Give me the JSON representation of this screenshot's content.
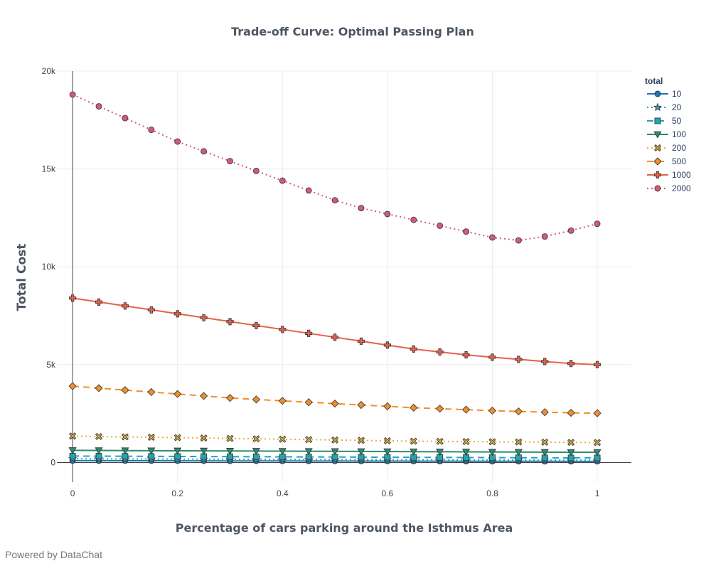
{
  "footer": {
    "text": "Powered by DataChat"
  },
  "chart_data": {
    "type": "line",
    "title": "Trade-off Curve: Optimal Passing Plan",
    "xlabel": "Percentage of cars parking around the Isthmus Area",
    "ylabel": "Total Cost",
    "xlim": [
      -0.03,
      1.065
    ],
    "ylim": [
      -1000,
      20000
    ],
    "x_ticks": [
      0,
      0.2,
      0.4,
      0.6,
      0.8,
      1
    ],
    "x_tick_labels": [
      "0",
      "0.2",
      "0.4",
      "0.6",
      "0.8",
      "1"
    ],
    "y_ticks": [
      0,
      5000,
      10000,
      15000,
      20000
    ],
    "y_tick_labels": [
      "0",
      "5k",
      "10k",
      "15k",
      "20k"
    ],
    "grid": true,
    "legend": {
      "title": "total",
      "position": "top-right"
    },
    "x": [
      0,
      0.05,
      0.1,
      0.15,
      0.2,
      0.25,
      0.3,
      0.35,
      0.4,
      0.45,
      0.5,
      0.55,
      0.6,
      0.65,
      0.7,
      0.75,
      0.8,
      0.85,
      0.9,
      0.95,
      1
    ],
    "series": [
      {
        "name": "10",
        "color": "#1f77b4",
        "dash": "solid",
        "marker": "circle",
        "values": [
          95,
          93,
          91,
          89,
          87,
          85,
          83,
          81,
          79,
          77,
          75,
          73,
          71,
          69,
          67,
          65,
          63,
          62,
          61,
          60,
          60
        ]
      },
      {
        "name": "20",
        "color": "#3a9bc7",
        "dash": "dot",
        "marker": "star",
        "values": [
          190,
          186,
          182,
          178,
          174,
          170,
          166,
          162,
          158,
          154,
          150,
          146,
          142,
          138,
          134,
          130,
          126,
          124,
          122,
          120,
          120
        ]
      },
      {
        "name": "50",
        "color": "#1fa7b0",
        "dash": "dash",
        "marker": "square",
        "values": [
          330,
          325,
          320,
          315,
          310,
          305,
          300,
          295,
          290,
          285,
          280,
          275,
          270,
          265,
          260,
          255,
          250,
          245,
          242,
          240,
          240
        ]
      },
      {
        "name": "100",
        "color": "#2e8b6e",
        "dash": "solid",
        "marker": "triangle-down",
        "values": [
          620,
          615,
          610,
          605,
          600,
          595,
          590,
          585,
          580,
          575,
          570,
          565,
          560,
          555,
          550,
          545,
          540,
          535,
          530,
          525,
          520
        ]
      },
      {
        "name": "200",
        "color": "#e0b03c",
        "dash": "dot",
        "marker": "x",
        "values": [
          1350,
          1330,
          1310,
          1290,
          1270,
          1250,
          1230,
          1210,
          1190,
          1170,
          1150,
          1130,
          1110,
          1090,
          1080,
          1070,
          1060,
          1050,
          1040,
          1030,
          1020
        ]
      },
      {
        "name": "500",
        "color": "#f28e2b",
        "dash": "dash",
        "marker": "diamond",
        "values": [
          3900,
          3800,
          3700,
          3600,
          3500,
          3400,
          3300,
          3220,
          3150,
          3080,
          3010,
          2940,
          2870,
          2800,
          2750,
          2700,
          2650,
          2610,
          2570,
          2540,
          2520
        ]
      },
      {
        "name": "1000",
        "color": "#e8604c",
        "dash": "solid",
        "marker": "cross",
        "values": [
          8400,
          8200,
          8000,
          7800,
          7600,
          7400,
          7200,
          7000,
          6800,
          6600,
          6400,
          6200,
          6000,
          5800,
          5650,
          5500,
          5380,
          5270,
          5160,
          5060,
          5000
        ]
      },
      {
        "name": "2000",
        "color": "#d45a78",
        "dash": "dot",
        "marker": "circle",
        "values": [
          18800,
          18200,
          17600,
          17000,
          16400,
          15900,
          15400,
          14900,
          14400,
          13900,
          13400,
          13000,
          12700,
          12400,
          12100,
          11800,
          11500,
          11350,
          11550,
          11850,
          12200
        ]
      }
    ]
  }
}
